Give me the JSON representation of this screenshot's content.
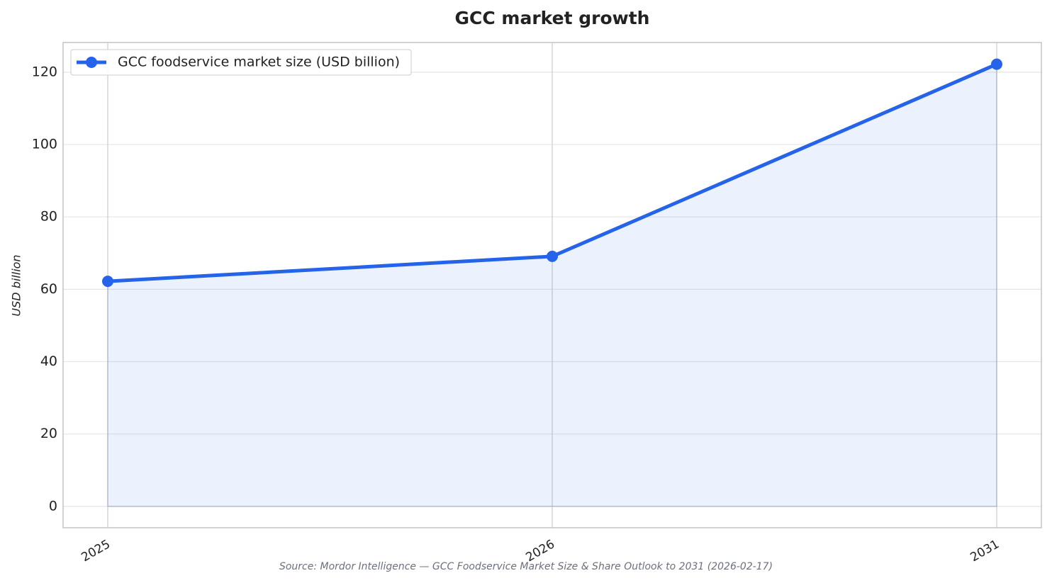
{
  "chart_data": {
    "type": "line",
    "title": "GCC market growth",
    "ylabel": "USD billion",
    "source": "Source: Mordor Intelligence — GCC Foodservice Market Size & Share Outlook to 2031 (2026-02-17)",
    "categories": [
      "2025",
      "2026",
      "2031"
    ],
    "series": [
      {
        "name": "GCC foodservice market size (USD billion)",
        "color": "#2563eb",
        "values": [
          62.2,
          69.1,
          122.2
        ]
      }
    ],
    "ylim": [
      -5.9,
      128.2
    ],
    "yticks": [
      0,
      20,
      40,
      60,
      80,
      100,
      120
    ],
    "grid": true,
    "area_fill": true,
    "legend": "upper left"
  }
}
